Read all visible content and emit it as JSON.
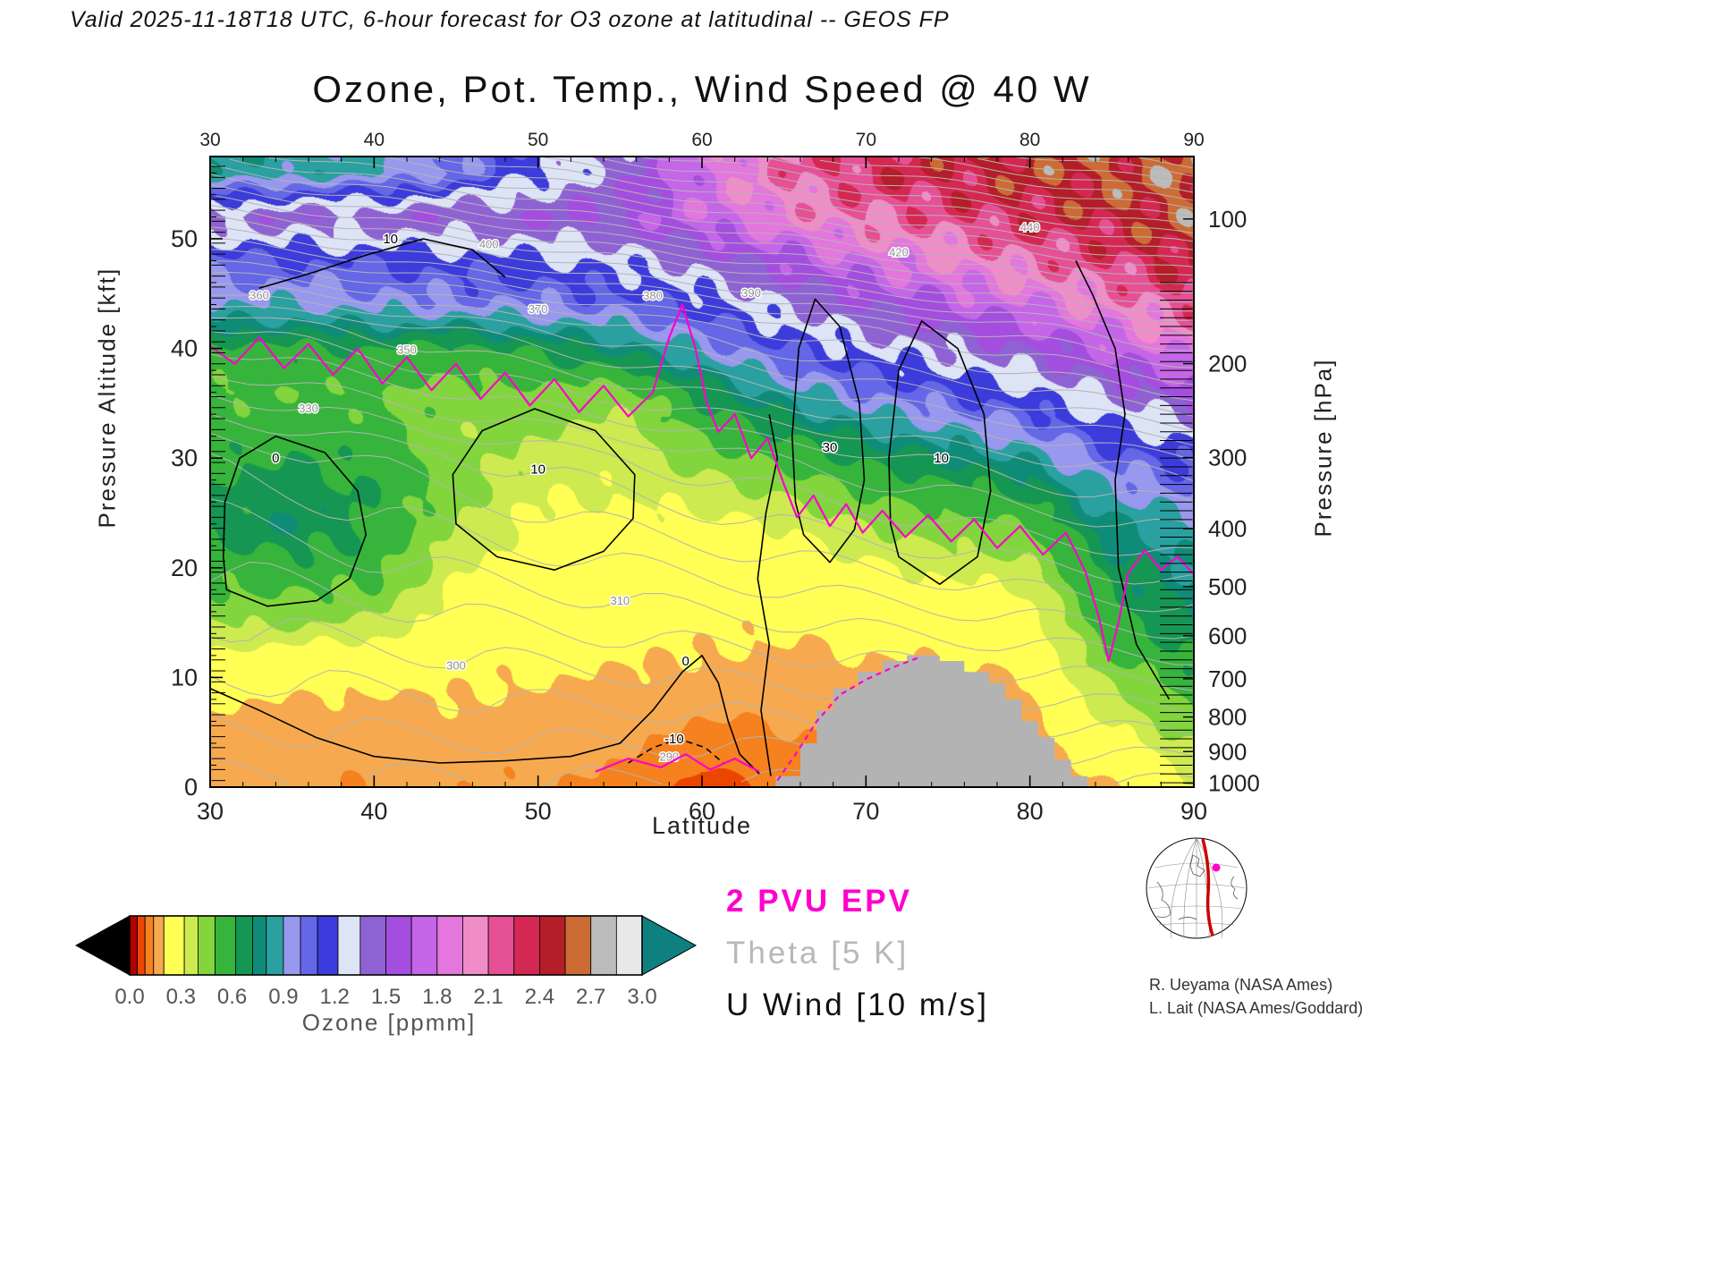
{
  "header": {
    "text": "Valid 2025-11-18T18 UTC, 6-hour forecast for O3 ozone at latitudinal -- GEOS FP"
  },
  "title": "Ozone, Pot. Temp., Wind Speed @ 40 W",
  "axes": {
    "x": {
      "label": "Latitude",
      "min": 30,
      "max": 90,
      "ticks": [
        30,
        40,
        50,
        60,
        70,
        80,
        90
      ],
      "minor_step": 2
    },
    "y_left": {
      "label": "Pressure Altitude [kft]",
      "min": 0,
      "max": 57.5,
      "ticks": [
        0,
        10,
        20,
        30,
        40,
        50
      ],
      "minor_step": 2
    },
    "y_right": {
      "label": "Pressure [hPa]",
      "ticks": [
        100,
        200,
        300,
        400,
        500,
        600,
        700,
        800,
        900,
        1000
      ]
    }
  },
  "legend": [
    {
      "text": "2 PVU EPV",
      "color": "#ff00cc",
      "weight": "bold"
    },
    {
      "text": "Theta [5 K]",
      "color": "#b8b8b8",
      "weight": "normal"
    },
    {
      "text": "U Wind [10 m/s]",
      "color": "#111111",
      "weight": "normal"
    }
  ],
  "credits": [
    "R. Ueyama (NASA Ames)",
    "L. Lait (NASA Ames/Goddard)"
  ],
  "colorbar": {
    "title": "Ozone [ppmm]",
    "tick_labels": [
      "0.0",
      "0.3",
      "0.6",
      "0.9",
      "1.2",
      "1.5",
      "1.8",
      "2.1",
      "2.4",
      "2.7",
      "3.0"
    ],
    "under_color": "#000000",
    "over_color": "#0f8080"
  },
  "chart_data": {
    "type": "heatmap",
    "title": "Ozone, Pot. Temp., Wind Speed @ 40 W",
    "x_name": "latitude_deg",
    "y_name": "pressure_altitude_kft",
    "lat_range": [
      30,
      90
    ],
    "alt_range_kft": [
      0,
      57.5
    ],
    "lats": [
      30,
      35,
      40,
      45,
      50,
      55,
      60,
      65,
      70,
      75,
      80,
      85,
      90
    ],
    "alts_kft": [
      0,
      4,
      8,
      12,
      16,
      20,
      24,
      28,
      32,
      36,
      40,
      44,
      48,
      52,
      56
    ],
    "ozone_ppmm": [
      [
        0.16,
        0.15,
        0.14,
        0.15,
        0.14,
        0.13,
        0.07,
        0.1,
        0.12,
        0.12,
        0.12,
        0.2,
        0.3
      ],
      [
        0.17,
        0.16,
        0.16,
        0.17,
        0.16,
        0.15,
        0.11,
        0.13,
        0.14,
        0.14,
        0.15,
        0.28,
        0.4
      ],
      [
        0.21,
        0.2,
        0.19,
        0.2,
        0.19,
        0.18,
        0.16,
        0.16,
        0.17,
        0.17,
        0.18,
        0.38,
        0.52
      ],
      [
        0.3,
        0.28,
        0.26,
        0.23,
        0.22,
        0.21,
        0.2,
        0.19,
        0.2,
        0.21,
        0.22,
        0.5,
        0.64
      ],
      [
        0.44,
        0.46,
        0.42,
        0.27,
        0.25,
        0.24,
        0.23,
        0.22,
        0.24,
        0.26,
        0.28,
        0.6,
        0.72
      ],
      [
        0.55,
        0.58,
        0.55,
        0.33,
        0.28,
        0.27,
        0.26,
        0.26,
        0.3,
        0.34,
        0.38,
        0.68,
        0.8
      ],
      [
        0.66,
        0.72,
        0.62,
        0.4,
        0.29,
        0.29,
        0.3,
        0.32,
        0.4,
        0.46,
        0.52,
        0.78,
        0.9
      ],
      [
        0.62,
        0.66,
        0.6,
        0.44,
        0.35,
        0.34,
        0.38,
        0.45,
        0.55,
        0.62,
        0.7,
        0.95,
        1.05
      ],
      [
        0.56,
        0.58,
        0.55,
        0.42,
        0.41,
        0.36,
        0.5,
        0.62,
        0.75,
        0.85,
        0.95,
        1.15,
        1.25
      ],
      [
        0.5,
        0.52,
        0.5,
        0.46,
        0.48,
        0.44,
        0.65,
        0.85,
        1.0,
        1.1,
        1.2,
        1.4,
        1.55
      ],
      [
        0.58,
        0.6,
        0.62,
        0.58,
        0.65,
        0.75,
        0.92,
        1.1,
        1.25,
        1.35,
        1.5,
        1.7,
        1.9
      ],
      [
        0.92,
        0.9,
        0.95,
        0.98,
        1.0,
        1.05,
        1.15,
        1.35,
        1.5,
        1.65,
        1.8,
        2.0,
        2.2
      ],
      [
        1.05,
        1.1,
        1.12,
        1.15,
        1.2,
        1.25,
        1.4,
        1.6,
        1.8,
        1.95,
        2.1,
        2.25,
        2.45
      ],
      [
        1.42,
        1.45,
        1.45,
        1.48,
        1.5,
        1.55,
        1.75,
        1.95,
        2.1,
        2.2,
        2.35,
        2.45,
        2.58
      ],
      [
        0.82,
        0.84,
        0.88,
        1.0,
        1.2,
        1.4,
        1.8,
        2.1,
        2.3,
        2.4,
        2.5,
        2.55,
        2.62
      ]
    ],
    "colormap": [
      {
        "v": -9,
        "c": "#000000"
      },
      {
        "v": 0.0,
        "c": "#b40000"
      },
      {
        "v": 0.045,
        "c": "#eb4600"
      },
      {
        "v": 0.09,
        "c": "#f5821e"
      },
      {
        "v": 0.14,
        "c": "#f6a94f"
      },
      {
        "v": 0.2,
        "c": "#ffff55"
      },
      {
        "v": 0.32,
        "c": "#cdea50"
      },
      {
        "v": 0.4,
        "c": "#82d53c"
      },
      {
        "v": 0.5,
        "c": "#37b43c"
      },
      {
        "v": 0.62,
        "c": "#159653"
      },
      {
        "v": 0.72,
        "c": "#0f8c78"
      },
      {
        "v": 0.8,
        "c": "#2aa0a0"
      },
      {
        "v": 0.9,
        "c": "#9898ee"
      },
      {
        "v": 1.0,
        "c": "#6467e6"
      },
      {
        "v": 1.1,
        "c": "#3c3cdc"
      },
      {
        "v": 1.22,
        "c": "#dde4f6"
      },
      {
        "v": 1.35,
        "c": "#8f62d4"
      },
      {
        "v": 1.5,
        "c": "#a44ee0"
      },
      {
        "v": 1.65,
        "c": "#c566e8"
      },
      {
        "v": 1.8,
        "c": "#e377dd"
      },
      {
        "v": 1.95,
        "c": "#f08cc8"
      },
      {
        "v": 2.1,
        "c": "#e65095"
      },
      {
        "v": 2.25,
        "c": "#d42852"
      },
      {
        "v": 2.4,
        "c": "#b41e28"
      },
      {
        "v": 2.55,
        "c": "#cd6b35"
      },
      {
        "v": 2.7,
        "c": "#bcbcbc"
      },
      {
        "v": 2.85,
        "c": "#e8e8e8"
      }
    ],
    "terrain": {
      "color": "#b3b3b3",
      "pts": [
        [
          64.5,
          0
        ],
        [
          64.5,
          1
        ],
        [
          66,
          1
        ],
        [
          66,
          4
        ],
        [
          67,
          4
        ],
        [
          67,
          7
        ],
        [
          68,
          7
        ],
        [
          68,
          9
        ],
        [
          69.5,
          9
        ],
        [
          69.5,
          10.5
        ],
        [
          71,
          10.5
        ],
        [
          71,
          11.5
        ],
        [
          72.5,
          11.5
        ],
        [
          72.5,
          12
        ],
        [
          74.5,
          12
        ],
        [
          74.5,
          11.5
        ],
        [
          76,
          11.5
        ],
        [
          76,
          10.5
        ],
        [
          77.5,
          10.5
        ],
        [
          77.5,
          9.5
        ],
        [
          78.5,
          9.5
        ],
        [
          78.5,
          8
        ],
        [
          79.5,
          8
        ],
        [
          79.5,
          6
        ],
        [
          80.5,
          6
        ],
        [
          80.5,
          4.5
        ],
        [
          81.5,
          4.5
        ],
        [
          81.5,
          2.5
        ],
        [
          82.5,
          2.5
        ],
        [
          82.5,
          1
        ],
        [
          83.5,
          1
        ],
        [
          83.5,
          0
        ]
      ]
    },
    "pv_lines": [
      {
        "name": "tropopause_2pvu",
        "dashed": false,
        "pts": [
          [
            30,
            40.2
          ],
          [
            31.5,
            38.6
          ],
          [
            33,
            41
          ],
          [
            34.5,
            38.2
          ],
          [
            36,
            40.4
          ],
          [
            37.5,
            37.6
          ],
          [
            39,
            40
          ],
          [
            40.5,
            36.8
          ],
          [
            42,
            39.2
          ],
          [
            43.5,
            36.2
          ],
          [
            45,
            38.6
          ],
          [
            46.5,
            35.4
          ],
          [
            48,
            37.8
          ],
          [
            49.5,
            34.8
          ],
          [
            51,
            37.2
          ],
          [
            52.5,
            34.2
          ],
          [
            54,
            36.6
          ],
          [
            55.5,
            33.8
          ],
          [
            57,
            36
          ],
          [
            58,
            41
          ],
          [
            58.8,
            44
          ],
          [
            59.6,
            40
          ],
          [
            60.3,
            35
          ],
          [
            61,
            32.4
          ],
          [
            62,
            34
          ],
          [
            63,
            30
          ],
          [
            64,
            31.8
          ],
          [
            65,
            27.6
          ],
          [
            65.8,
            24.6
          ],
          [
            66.8,
            26.6
          ],
          [
            67.8,
            23.8
          ],
          [
            68.8,
            25.8
          ],
          [
            69.8,
            23.2
          ],
          [
            71,
            25.2
          ],
          [
            72.4,
            22.8
          ],
          [
            73.8,
            24.8
          ],
          [
            75.2,
            22.4
          ],
          [
            76.6,
            24.4
          ],
          [
            78,
            21.8
          ],
          [
            79.4,
            23.8
          ],
          [
            80.8,
            21.2
          ],
          [
            82.2,
            23.2
          ],
          [
            83.4,
            19.6
          ],
          [
            84.2,
            15.5
          ],
          [
            84.8,
            11.5
          ],
          [
            85.4,
            15
          ],
          [
            86,
            19.5
          ],
          [
            87,
            21.6
          ],
          [
            88,
            19.8
          ],
          [
            89,
            21
          ],
          [
            90,
            19.4
          ]
        ]
      },
      {
        "name": "pv_low_segment",
        "dashed": false,
        "pts": [
          [
            53.5,
            1.4
          ],
          [
            55.5,
            2.6
          ],
          [
            57.5,
            1.8
          ],
          [
            59,
            3
          ],
          [
            60.5,
            1.6
          ],
          [
            62,
            2.6
          ],
          [
            63.5,
            1.4
          ]
        ]
      },
      {
        "name": "pv_terrain_edge",
        "dashed": true,
        "pts": [
          [
            64.6,
            0.6
          ],
          [
            65.8,
            3.2
          ],
          [
            67,
            6
          ],
          [
            68.4,
            8.4
          ],
          [
            70,
            9.8
          ],
          [
            71.6,
            10.9
          ],
          [
            73.2,
            11.8
          ]
        ]
      }
    ],
    "wind_contours_10ms": [
      {
        "label": "0",
        "dashed": false,
        "closed": true,
        "label_at": [
          34,
          30
        ],
        "pts": [
          [
            31,
            18
          ],
          [
            33.5,
            16.5
          ],
          [
            36.5,
            17
          ],
          [
            38.5,
            19
          ],
          [
            39.5,
            23
          ],
          [
            39,
            27
          ],
          [
            37,
            30.5
          ],
          [
            34,
            32
          ],
          [
            31.8,
            30
          ],
          [
            30.9,
            26
          ],
          [
            30.8,
            21
          ]
        ]
      },
      {
        "label": "0",
        "dashed": false,
        "closed": false,
        "label_at": [
          59,
          11.5
        ],
        "pts": [
          [
            30,
            9
          ],
          [
            33,
            7
          ],
          [
            36.5,
            4.5
          ],
          [
            40,
            2.8
          ],
          [
            44,
            2.2
          ],
          [
            48,
            2.4
          ],
          [
            52,
            2.8
          ],
          [
            55,
            4
          ],
          [
            57,
            7
          ],
          [
            58.8,
            10.5
          ],
          [
            60,
            12
          ],
          [
            61,
            9.5
          ],
          [
            61.6,
            6
          ],
          [
            62.3,
            3
          ],
          [
            63.5,
            1.2
          ]
        ]
      },
      {
        "label": "-10",
        "dashed": true,
        "closed": false,
        "label_at": [
          58.3,
          4.4
        ],
        "pts": [
          [
            55.5,
            2.2
          ],
          [
            57,
            3.6
          ],
          [
            58.6,
            4.4
          ],
          [
            60.2,
            3.6
          ],
          [
            61.3,
            2.2
          ]
        ]
      },
      {
        "label": "10",
        "dashed": false,
        "closed": true,
        "label_at": [
          50,
          29
        ],
        "pts": [
          [
            45,
            24
          ],
          [
            47.5,
            21
          ],
          [
            51,
            19.8
          ],
          [
            54,
            21.5
          ],
          [
            55.8,
            24.5
          ],
          [
            55.9,
            28.5
          ],
          [
            53.5,
            32.5
          ],
          [
            49.8,
            34.5
          ],
          [
            46.6,
            32.5
          ],
          [
            44.8,
            28.5
          ]
        ]
      },
      {
        "label": "30",
        "dashed": false,
        "closed": true,
        "label_at": [
          67.8,
          31
        ],
        "pts": [
          [
            66.2,
            23
          ],
          [
            67.8,
            20.5
          ],
          [
            69.3,
            23.5
          ],
          [
            69.9,
            28
          ],
          [
            69.6,
            35
          ],
          [
            68.4,
            42
          ],
          [
            66.9,
            44.5
          ],
          [
            65.9,
            40
          ],
          [
            65.5,
            32
          ],
          [
            65.7,
            26
          ]
        ]
      },
      {
        "label": "10",
        "dashed": false,
        "closed": true,
        "label_at": [
          74.6,
          30
        ],
        "pts": [
          [
            72,
            21
          ],
          [
            74.5,
            18.5
          ],
          [
            76.8,
            21
          ],
          [
            77.6,
            27
          ],
          [
            77.2,
            34
          ],
          [
            75.6,
            40
          ],
          [
            73.4,
            42.5
          ],
          [
            72,
            38
          ],
          [
            71.4,
            30
          ],
          [
            71.5,
            24
          ]
        ]
      },
      {
        "label": "10",
        "dashed": false,
        "closed": false,
        "label_at": [
          41,
          50
        ],
        "pts": [
          [
            33,
            45.5
          ],
          [
            36,
            46.8
          ],
          [
            39.5,
            48.5
          ],
          [
            43,
            50
          ],
          [
            46,
            49
          ],
          [
            48,
            46.5
          ]
        ]
      },
      {
        "label": "",
        "dashed": false,
        "closed": false,
        "label_at": null,
        "pts": [
          [
            88.5,
            8
          ],
          [
            86.5,
            13
          ],
          [
            85.4,
            20
          ],
          [
            85.2,
            28
          ],
          [
            85.8,
            34
          ],
          [
            85.2,
            40
          ],
          [
            83.8,
            45
          ],
          [
            82.8,
            48
          ]
        ]
      },
      {
        "label": "",
        "dashed": false,
        "closed": false,
        "label_at": null,
        "pts": [
          [
            64.2,
            1
          ],
          [
            63.6,
            7
          ],
          [
            64.1,
            13
          ],
          [
            63.4,
            19
          ],
          [
            63.9,
            25
          ],
          [
            64.6,
            30
          ],
          [
            64.1,
            34
          ]
        ]
      }
    ],
    "theta_k": {
      "interval": 5,
      "labels": [
        {
          "v": 290,
          "lat": 58
        },
        {
          "v": 300,
          "lat": 45
        },
        {
          "v": 310,
          "lat": 55
        },
        {
          "v": 330,
          "lat": 36
        },
        {
          "v": 350,
          "lat": 42
        },
        {
          "v": 360,
          "lat": 33
        },
        {
          "v": 370,
          "lat": 50
        },
        {
          "v": 380,
          "lat": 57
        },
        {
          "v": 390,
          "lat": 63
        },
        {
          "v": 400,
          "lat": 47
        },
        {
          "v": 420,
          "lat": 72
        },
        {
          "v": 440,
          "lat": 80
        }
      ]
    },
    "pressure_ticks_hpa": [
      100,
      200,
      300,
      400,
      500,
      600,
      700,
      800,
      900,
      1000
    ]
  }
}
